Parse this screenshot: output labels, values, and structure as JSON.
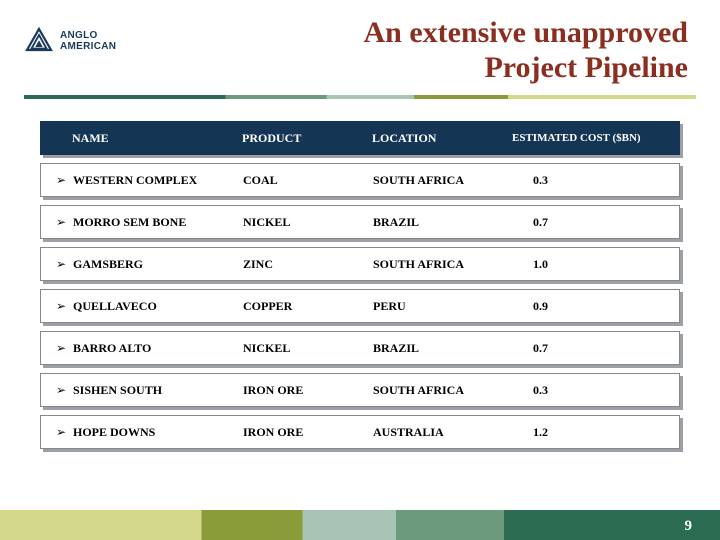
{
  "logo": {
    "line1": "ANGLO",
    "line2": "AMERICAN"
  },
  "title": {
    "line1": "An extensive unapproved",
    "line2": "Project Pipeline"
  },
  "table": {
    "headers": {
      "name": "NAME",
      "product": "PRODUCT",
      "location": "LOCATION",
      "cost": "ESTIMATED COST ($BN)"
    },
    "bullet": "➢",
    "rows": [
      {
        "name": "WESTERN COMPLEX",
        "product": "COAL",
        "location": "SOUTH AFRICA",
        "cost": "0.3"
      },
      {
        "name": "MORRO SEM BONE",
        "product": "NICKEL",
        "location": "BRAZIL",
        "cost": "0.7"
      },
      {
        "name": "GAMSBERG",
        "product": "ZINC",
        "location": "SOUTH AFRICA",
        "cost": "1.0"
      },
      {
        "name": "QUELLAVECO",
        "product": "COPPER",
        "location": "PERU",
        "cost": "0.9"
      },
      {
        "name": "BARRO ALTO",
        "product": "NICKEL",
        "location": "BRAZIL",
        "cost": "0.7"
      },
      {
        "name": "SISHEN SOUTH",
        "product": "IRON ORE",
        "location": "SOUTH AFRICA",
        "cost": "0.3"
      },
      {
        "name": "HOPE DOWNS",
        "product": "IRON ORE",
        "location": "AUSTRALIA",
        "cost": "1.2"
      }
    ]
  },
  "page_number": "9",
  "colors": {
    "title_color": "#8b2e1f",
    "header_bg": "#143654",
    "logo_color": "#1a3a5c"
  }
}
